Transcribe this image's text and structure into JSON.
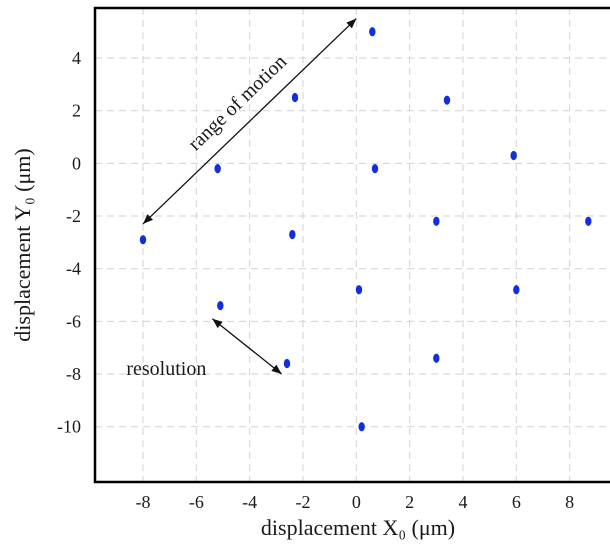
{
  "chart_data": {
    "type": "scatter",
    "title": "",
    "xlabel": "displacement X₀ (μm)",
    "ylabel": "displacement Y₀ (μm)",
    "xlim": [
      -9.8,
      9.7
    ],
    "ylim": [
      -12.1,
      5.9
    ],
    "x_ticks": [
      "-8",
      "-6",
      "-4",
      "-2",
      "0",
      "2",
      "4",
      "6",
      "8"
    ],
    "y_ticks": [
      "4",
      "2",
      "0",
      "-2",
      "-4",
      "-6",
      "-8",
      "-10"
    ],
    "grid": true,
    "marker_color": "#1030e0",
    "points": [
      {
        "x": 0.6,
        "y": 5.0
      },
      {
        "x": -2.3,
        "y": 2.5
      },
      {
        "x": 3.4,
        "y": 2.4
      },
      {
        "x": -5.2,
        "y": -0.2
      },
      {
        "x": 0.7,
        "y": -0.2
      },
      {
        "x": 5.9,
        "y": 0.3
      },
      {
        "x": -8.0,
        "y": -2.9
      },
      {
        "x": -2.4,
        "y": -2.7
      },
      {
        "x": 3.0,
        "y": -2.2
      },
      {
        "x": 8.7,
        "y": -2.2
      },
      {
        "x": 0.1,
        "y": -4.8
      },
      {
        "x": 6.0,
        "y": -4.8
      },
      {
        "x": -5.1,
        "y": -5.4
      },
      {
        "x": -2.6,
        "y": -7.6
      },
      {
        "x": 3.0,
        "y": -7.4
      },
      {
        "x": 0.2,
        "y": -10.0
      }
    ],
    "annotations": [
      {
        "text": "range of motion",
        "from": [
          -8.0,
          -2.3
        ],
        "to": [
          0.0,
          5.5
        ]
      },
      {
        "text": "resolution",
        "from": [
          -5.4,
          -5.9
        ],
        "to": [
          -2.8,
          -8.0
        ]
      }
    ]
  }
}
